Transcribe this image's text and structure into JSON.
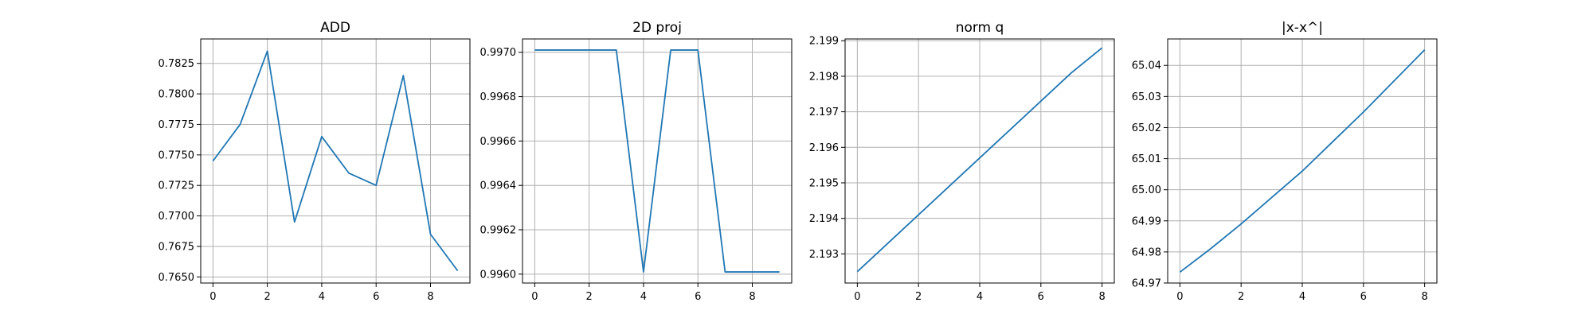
{
  "chart_data": [
    {
      "type": "line",
      "title": "ADD",
      "xlabel": "",
      "ylabel": "",
      "x": [
        0,
        1,
        2,
        3,
        4,
        5,
        6,
        7,
        8,
        9
      ],
      "y": [
        0.7745,
        0.7775,
        0.7835,
        0.7695,
        0.7765,
        0.7735,
        0.7725,
        0.7815,
        0.7685,
        0.7655
      ],
      "xlim": [
        -0.45,
        9.45
      ],
      "ylim": [
        0.7645,
        0.7845
      ],
      "xticks": [
        0,
        2,
        4,
        6,
        8
      ],
      "xtick_labels": [
        "0",
        "2",
        "4",
        "6",
        "8"
      ],
      "yticks": [
        0.765,
        0.7675,
        0.77,
        0.7725,
        0.775,
        0.7775,
        0.78,
        0.7825
      ],
      "ytick_labels": [
        "0.7650",
        "0.7675",
        "0.7700",
        "0.7725",
        "0.7750",
        "0.7775",
        "0.7800",
        "0.7825"
      ],
      "grid": true,
      "color": "#1f77b4"
    },
    {
      "type": "line",
      "title": "2D proj",
      "xlabel": "",
      "ylabel": "",
      "x": [
        0,
        1,
        2,
        3,
        4,
        5,
        6,
        7,
        8,
        9
      ],
      "y": [
        0.99701,
        0.99701,
        0.99701,
        0.99701,
        0.99601,
        0.99701,
        0.99701,
        0.99601,
        0.99601,
        0.99601
      ],
      "xlim": [
        -0.45,
        9.45
      ],
      "ylim": [
        0.99596,
        0.99706
      ],
      "xticks": [
        0,
        2,
        4,
        6,
        8
      ],
      "xtick_labels": [
        "0",
        "2",
        "4",
        "6",
        "8"
      ],
      "yticks": [
        0.996,
        0.9962,
        0.9964,
        0.9966,
        0.9968,
        0.997
      ],
      "ytick_labels": [
        "0.9960",
        "0.9962",
        "0.9964",
        "0.9966",
        "0.9968",
        "0.9970"
      ],
      "grid": true,
      "color": "#1f77b4"
    },
    {
      "type": "line",
      "title": "norm q",
      "xlabel": "",
      "ylabel": "",
      "x": [
        0,
        1,
        2,
        3,
        4,
        5,
        6,
        7,
        8
      ],
      "y": [
        2.1925,
        2.1933,
        2.1941,
        2.1949,
        2.1957,
        2.1965,
        2.1973,
        2.1981,
        2.1988
      ],
      "xlim": [
        -0.4,
        8.4
      ],
      "ylim": [
        2.19218,
        2.19905
      ],
      "xticks": [
        0,
        2,
        4,
        6,
        8
      ],
      "xtick_labels": [
        "0",
        "2",
        "4",
        "6",
        "8"
      ],
      "yticks": [
        2.193,
        2.194,
        2.195,
        2.196,
        2.197,
        2.198,
        2.199
      ],
      "ytick_labels": [
        "2.193",
        "2.194",
        "2.195",
        "2.196",
        "2.197",
        "2.198",
        "2.199"
      ],
      "grid": true,
      "color": "#1f77b4"
    },
    {
      "type": "line",
      "title": "|x-x^|",
      "xlabel": "",
      "ylabel": "",
      "x": [
        0,
        1,
        2,
        3,
        4,
        5,
        6,
        7,
        8
      ],
      "y": [
        64.9735,
        64.981,
        64.989,
        64.9975,
        65.006,
        65.0155,
        65.025,
        65.035,
        65.045
      ],
      "xlim": [
        -0.4,
        8.4
      ],
      "ylim": [
        64.97,
        65.0485
      ],
      "xticks": [
        0,
        2,
        4,
        6,
        8
      ],
      "xtick_labels": [
        "0",
        "2",
        "4",
        "6",
        "8"
      ],
      "yticks": [
        64.97,
        64.98,
        64.99,
        65.0,
        65.01,
        65.02,
        65.03,
        65.04
      ],
      "ytick_labels": [
        "64.97",
        "64.98",
        "64.99",
        "65.00",
        "65.01",
        "65.02",
        "65.03",
        "65.04"
      ],
      "grid": true,
      "color": "#1f77b4"
    }
  ]
}
